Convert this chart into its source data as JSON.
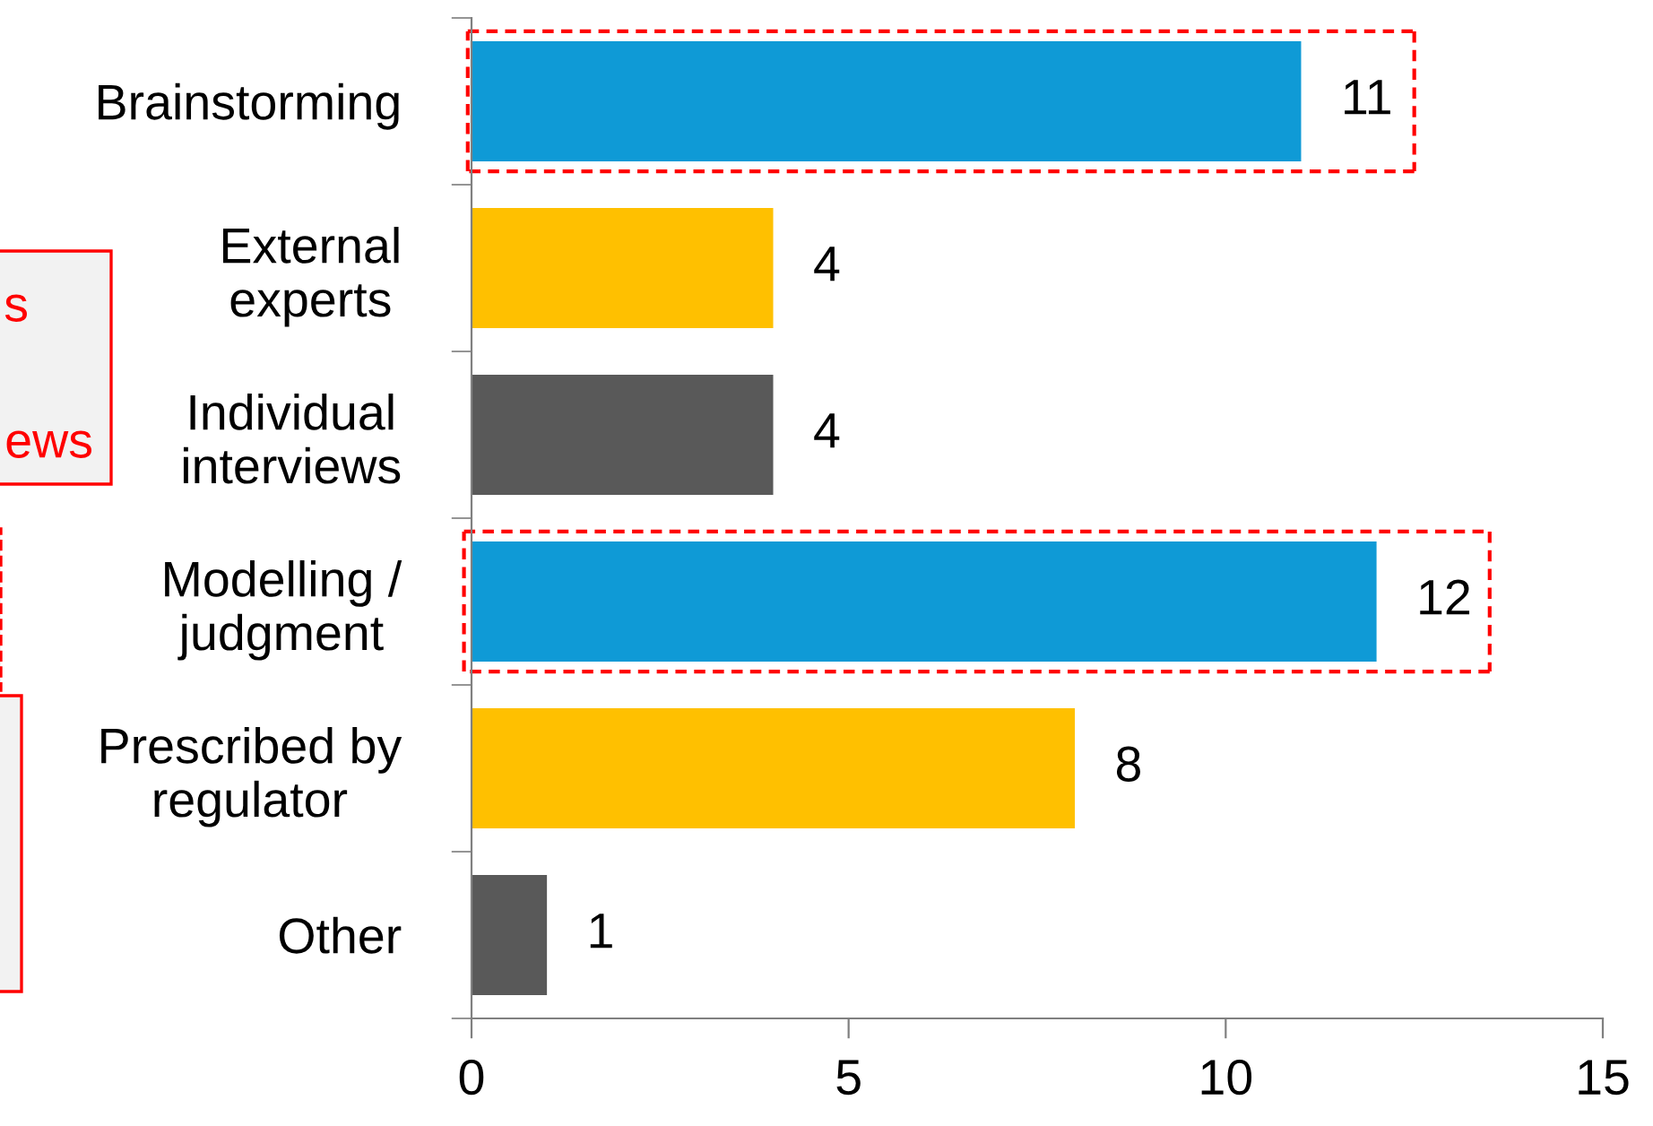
{
  "chart_data": {
    "type": "bar",
    "orientation": "horizontal",
    "categories": [
      "Brainstorming",
      "External\nexperts",
      "Individual\ninterviews",
      "Modelling /\njudgment",
      "Prescribed by\nregulator",
      "Other"
    ],
    "values": [
      11,
      4,
      4,
      12,
      8,
      1
    ],
    "colors": [
      "#0f9ad6",
      "#ffc000",
      "#595959",
      "#0f9ad6",
      "#ffc000",
      "#595959"
    ],
    "xlim": [
      0,
      15
    ],
    "xticks": [
      0,
      5,
      10,
      15
    ],
    "data_labels": true,
    "grid": false,
    "annotations": [
      "s",
      "ews"
    ]
  }
}
